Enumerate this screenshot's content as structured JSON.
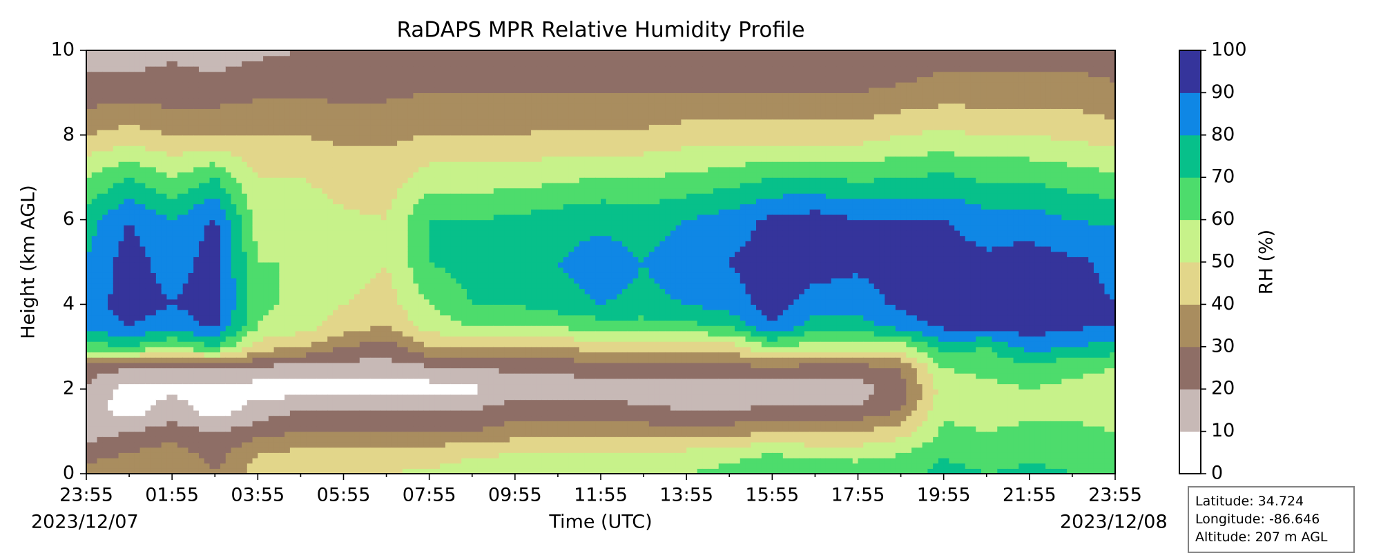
{
  "chart_data": {
    "type": "heatmap",
    "subtype": "filled-contour",
    "title": "RaDAPS MPR Relative Humidity Profile",
    "xlabel": "Time (UTC)",
    "ylabel": "Height (km AGL)",
    "x_tick_labels": [
      "23:55",
      "01:55",
      "03:55",
      "05:55",
      "07:55",
      "09:55",
      "11:55",
      "13:55",
      "15:55",
      "17:55",
      "19:55",
      "21:55",
      "23:55"
    ],
    "x_tick_hours": [
      0,
      2,
      4,
      6,
      8,
      10,
      12,
      14,
      16,
      18,
      20,
      22,
      24
    ],
    "start_date": "2023/12/07",
    "end_date": "2023/12/08",
    "xlim_hours": [
      0,
      24
    ],
    "ylim": [
      0,
      10
    ],
    "y_ticks": [
      0,
      2,
      4,
      6,
      8,
      10
    ],
    "colorbar": {
      "label": "RH (%)",
      "levels": [
        0,
        10,
        20,
        30,
        40,
        50,
        60,
        70,
        80,
        90,
        100
      ],
      "colors": [
        "#ffffff",
        "#c7b9b6",
        "#8e6e66",
        "#a98d5f",
        "#e2d68a",
        "#c7f28a",
        "#4ddc6c",
        "#07c08a",
        "#0f87e5",
        "#35349b"
      ]
    },
    "profiles": {
      "heights_km": [
        0,
        0.5,
        1,
        1.5,
        2,
        2.5,
        3,
        3.5,
        4,
        5,
        6,
        7,
        8,
        9,
        10
      ],
      "times_hours": [
        0,
        1,
        2,
        3,
        4,
        5,
        6,
        7,
        8,
        9,
        10,
        11,
        12,
        13,
        14,
        15,
        16,
        17,
        18,
        19,
        20,
        21,
        22,
        23,
        24
      ],
      "rh_percent": [
        [
          35,
          25,
          15,
          15,
          18,
          25,
          65,
          85,
          85,
          80,
          75,
          60,
          40,
          25,
          15
        ],
        [
          40,
          30,
          20,
          5,
          5,
          20,
          70,
          90,
          95,
          95,
          90,
          70,
          45,
          25,
          15
        ],
        [
          40,
          35,
          25,
          15,
          8,
          20,
          60,
          85,
          90,
          85,
          80,
          60,
          40,
          25,
          18
        ],
        [
          30,
          25,
          20,
          5,
          5,
          22,
          70,
          92,
          95,
          95,
          92,
          70,
          40,
          25,
          15
        ],
        [
          45,
          40,
          25,
          15,
          5,
          18,
          45,
          60,
          62,
          60,
          55,
          50,
          40,
          28,
          18
        ],
        [
          45,
          42,
          30,
          20,
          5,
          15,
          40,
          55,
          58,
          60,
          58,
          50,
          40,
          28,
          20
        ],
        [
          45,
          42,
          30,
          20,
          5,
          15,
          30,
          45,
          50,
          55,
          52,
          45,
          38,
          28,
          20
        ],
        [
          50,
          45,
          30,
          20,
          5,
          15,
          25,
          40,
          45,
          50,
          50,
          45,
          38,
          28,
          20
        ],
        [
          52,
          45,
          30,
          20,
          5,
          18,
          40,
          55,
          60,
          70,
          70,
          55,
          40,
          30,
          20
        ],
        [
          55,
          48,
          30,
          20,
          8,
          20,
          40,
          60,
          70,
          75,
          70,
          55,
          40,
          30,
          20
        ],
        [
          55,
          50,
          35,
          25,
          15,
          22,
          40,
          60,
          70,
          75,
          72,
          55,
          40,
          30,
          20
        ],
        [
          58,
          52,
          35,
          25,
          15,
          22,
          40,
          62,
          75,
          80,
          75,
          58,
          42,
          30,
          20
        ],
        [
          58,
          52,
          35,
          25,
          15,
          25,
          45,
          65,
          80,
          85,
          78,
          60,
          42,
          30,
          20
        ],
        [
          60,
          52,
          35,
          22,
          15,
          25,
          45,
          65,
          78,
          80,
          75,
          60,
          42,
          30,
          20
        ],
        [
          60,
          52,
          35,
          20,
          15,
          25,
          45,
          68,
          80,
          85,
          80,
          62,
          45,
          30,
          20
        ],
        [
          65,
          55,
          35,
          20,
          15,
          25,
          45,
          70,
          85,
          90,
          85,
          65,
          45,
          30,
          22
        ],
        [
          70,
          60,
          40,
          22,
          10,
          28,
          60,
          90,
          95,
          95,
          92,
          70,
          45,
          30,
          22
        ],
        [
          70,
          55,
          40,
          22,
          15,
          25,
          55,
          75,
          85,
          95,
          95,
          70,
          45,
          30,
          22
        ],
        [
          68,
          55,
          40,
          22,
          15,
          25,
          55,
          75,
          85,
          92,
          90,
          68,
          45,
          30,
          22
        ],
        [
          65,
          60,
          45,
          30,
          25,
          30,
          55,
          85,
          92,
          95,
          90,
          70,
          50,
          32,
          22
        ],
        [
          75,
          68,
          62,
          58,
          55,
          60,
          75,
          92,
          95,
          95,
          90,
          72,
          52,
          35,
          25
        ],
        [
          70,
          65,
          60,
          55,
          58,
          62,
          70,
          95,
          95,
          92,
          85,
          68,
          50,
          35,
          25
        ],
        [
          72,
          68,
          62,
          58,
          60,
          65,
          85,
          95,
          95,
          95,
          85,
          68,
          50,
          35,
          25
        ],
        [
          70,
          68,
          62,
          58,
          58,
          62,
          80,
          92,
          92,
          92,
          80,
          65,
          48,
          35,
          25
        ],
        [
          70,
          65,
          60,
          55,
          55,
          60,
          75,
          90,
          90,
          88,
          78,
          62,
          45,
          32,
          25
        ]
      ]
    },
    "site_info": {
      "latitude": "Latitude: 34.724",
      "longitude": "Longitude: -86.646",
      "altitude": "Altitude: 207 m AGL"
    }
  }
}
